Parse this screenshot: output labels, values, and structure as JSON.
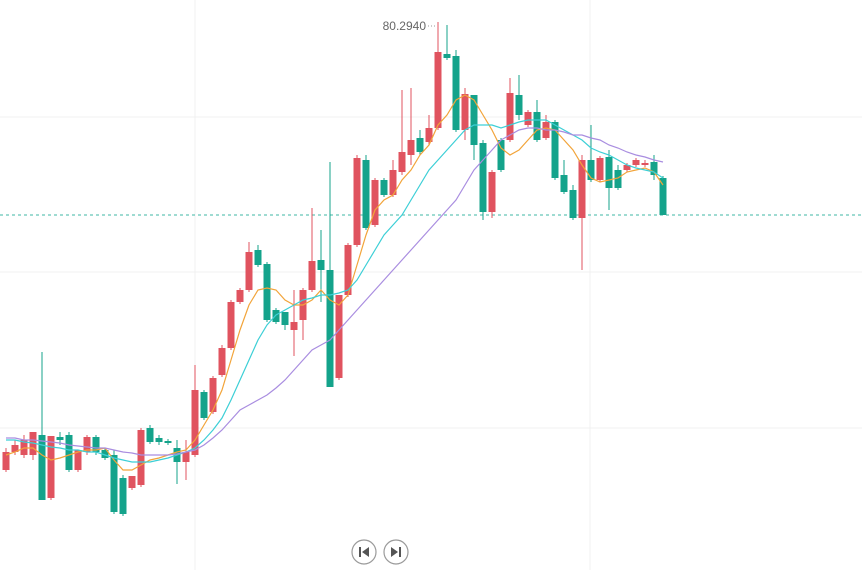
{
  "chart_data": {
    "type": "candlestick",
    "annotation": "80.2940",
    "ylim": [
      74.814,
      80.514
    ],
    "up_color": "#e0535f",
    "down_color": "#14a38b",
    "open": [
      75.814,
      75.994,
      75.964,
      75.964,
      76.164,
      75.534,
      76.144,
      76.164,
      75.814,
      75.994,
      76.144,
      76.014,
      75.964,
      75.734,
      75.634,
      75.664,
      76.234,
      76.134,
      76.104,
      76.034,
      75.894,
      75.964,
      76.594,
      76.394,
      76.764,
      77.034,
      77.494,
      77.614,
      78.014,
      77.874,
      77.414,
      77.394,
      77.214,
      77.314,
      77.614,
      77.914,
      77.814,
      76.734,
      77.564,
      78.064,
      78.914,
      78.264,
      78.714,
      78.564,
      78.794,
      78.964,
      79.134,
      79.094,
      79.234,
      79.974,
      79.954,
      79.214,
      79.564,
      79.084,
      78.394,
      79.114,
      79.114,
      79.564,
      79.264,
      79.394,
      79.134,
      79.294,
      78.764,
      78.614,
      78.334,
      78.914,
      78.714,
      78.944,
      78.814,
      78.814,
      78.864,
      78.864,
      78.894,
      78.734
    ],
    "high": [
      76.034,
      76.114,
      76.164,
      76.194,
      76.994,
      76.154,
      76.194,
      76.194,
      76.014,
      76.164,
      76.164,
      76.034,
      76.014,
      75.764,
      75.754,
      76.234,
      76.264,
      76.164,
      76.124,
      76.114,
      76.114,
      76.864,
      76.614,
      76.754,
      77.064,
      77.514,
      77.634,
      78.094,
      78.064,
      77.894,
      77.434,
      77.394,
      77.614,
      77.634,
      78.434,
      78.214,
      78.894,
      77.564,
      78.084,
      78.964,
      78.964,
      78.734,
      78.734,
      78.914,
      79.614,
      79.634,
      79.214,
      79.364,
      80.294,
      80.264,
      80.014,
      79.634,
      79.564,
      79.114,
      78.814,
      79.134,
      79.734,
      79.764,
      79.414,
      79.514,
      79.364,
      79.314,
      78.914,
      78.664,
      78.964,
      79.264,
      78.954,
      79.014,
      78.864,
      78.884,
      78.934,
      78.914,
      78.964,
      78.754
    ],
    "low": [
      75.794,
      75.964,
      75.934,
      75.914,
      75.514,
      75.514,
      76.064,
      75.794,
      75.794,
      75.964,
      75.964,
      75.914,
      75.374,
      75.354,
      75.614,
      75.644,
      76.074,
      76.064,
      76.064,
      75.674,
      75.714,
      75.944,
      76.314,
      76.374,
      76.744,
      77.014,
      77.474,
      77.594,
      77.844,
      77.294,
      77.274,
      77.214,
      76.954,
      77.114,
      77.594,
      77.494,
      76.644,
      76.714,
      77.544,
      78.044,
      78.214,
      78.244,
      78.544,
      78.544,
      78.764,
      78.864,
      78.964,
      79.064,
      79.214,
      79.914,
      79.194,
      79.114,
      78.914,
      78.314,
      78.334,
      78.794,
      79.094,
      79.314,
      79.244,
      79.094,
      79.114,
      78.714,
      78.574,
      78.314,
      77.814,
      78.694,
      78.694,
      78.414,
      78.614,
      78.794,
      78.844,
      78.844,
      78.714,
      78.364
    ],
    "close": [
      75.994,
      76.064,
      76.114,
      76.194,
      75.514,
      76.154,
      76.114,
      75.814,
      76.014,
      76.144,
      75.994,
      75.934,
      75.394,
      75.374,
      75.754,
      76.214,
      76.094,
      76.094,
      76.084,
      75.894,
      75.994,
      76.614,
      76.334,
      76.734,
      77.034,
      77.494,
      77.614,
      77.994,
      77.864,
      77.314,
      77.294,
      77.264,
      77.294,
      77.614,
      77.904,
      77.814,
      76.644,
      77.564,
      78.064,
      78.934,
      78.234,
      78.714,
      78.564,
      78.814,
      78.994,
      79.114,
      78.994,
      79.234,
      79.994,
      79.934,
      79.214,
      79.574,
      79.064,
      78.394,
      78.794,
      78.814,
      79.584,
      79.364,
      79.394,
      79.114,
      79.294,
      78.734,
      78.594,
      78.334,
      78.914,
      78.714,
      78.934,
      78.634,
      78.634,
      78.864,
      78.914,
      78.884,
      78.764,
      78.364
    ],
    "series": [
      {
        "color": "#f2a43a",
        "values": [
          75.964,
          75.994,
          76.034,
          76.034,
          75.964,
          75.914,
          75.934,
          75.964,
          75.994,
          76.014,
          76.014,
          76.034,
          75.914,
          75.814,
          75.814,
          75.864,
          75.914,
          75.934,
          75.964,
          75.994,
          76.014,
          76.114,
          76.264,
          76.414,
          76.614,
          76.914,
          77.214,
          77.464,
          77.614,
          77.634,
          77.614,
          77.514,
          77.464,
          77.464,
          77.514,
          77.614,
          77.514,
          77.464,
          77.564,
          77.864,
          78.164,
          78.414,
          78.514,
          78.564,
          78.714,
          78.814,
          78.964,
          79.064,
          79.264,
          79.364,
          79.514,
          79.564,
          79.514,
          79.364,
          79.214,
          79.034,
          78.964,
          79.014,
          79.114,
          79.214,
          79.234,
          79.214,
          79.114,
          79.014,
          78.864,
          78.734,
          78.694,
          78.714,
          78.734,
          78.794,
          78.814,
          78.834,
          78.794,
          78.664
        ]
      },
      {
        "color": "#3ccfd6",
        "values": [
          76.114,
          76.114,
          76.094,
          76.084,
          76.064,
          76.044,
          76.034,
          76.014,
          76.014,
          75.994,
          75.994,
          75.964,
          75.934,
          75.914,
          75.894,
          75.894,
          75.894,
          75.914,
          75.934,
          75.964,
          75.994,
          76.034,
          76.114,
          76.214,
          76.334,
          76.514,
          76.714,
          76.914,
          77.114,
          77.264,
          77.364,
          77.414,
          77.464,
          77.514,
          77.534,
          77.564,
          77.564,
          77.584,
          77.614,
          77.714,
          77.864,
          78.014,
          78.164,
          78.264,
          78.364,
          78.514,
          78.664,
          78.814,
          78.914,
          79.014,
          79.114,
          79.214,
          79.264,
          79.264,
          79.264,
          79.234,
          79.264,
          79.294,
          79.314,
          79.314,
          79.314,
          79.264,
          79.214,
          79.164,
          79.114,
          79.034,
          78.994,
          78.964,
          78.914,
          78.864,
          78.834,
          78.814,
          78.794,
          78.734
        ]
      },
      {
        "color": "#a98de0",
        "values": [
          76.134,
          76.134,
          76.114,
          76.114,
          76.104,
          76.094,
          76.084,
          76.064,
          76.054,
          76.044,
          76.034,
          76.034,
          76.014,
          75.994,
          75.984,
          75.964,
          75.964,
          75.964,
          75.964,
          75.974,
          75.994,
          76.014,
          76.064,
          76.134,
          76.214,
          76.314,
          76.414,
          76.464,
          76.514,
          76.564,
          76.634,
          76.714,
          76.814,
          76.914,
          77.014,
          77.064,
          77.114,
          77.214,
          77.314,
          77.414,
          77.514,
          77.614,
          77.714,
          77.814,
          77.914,
          78.014,
          78.114,
          78.214,
          78.314,
          78.414,
          78.514,
          78.664,
          78.814,
          78.914,
          79.014,
          79.114,
          79.164,
          79.214,
          79.234,
          79.234,
          79.214,
          79.214,
          79.194,
          79.164,
          79.164,
          79.134,
          79.114,
          79.064,
          79.034,
          78.994,
          78.964,
          78.944,
          78.914,
          78.894
        ]
      }
    ]
  }
}
